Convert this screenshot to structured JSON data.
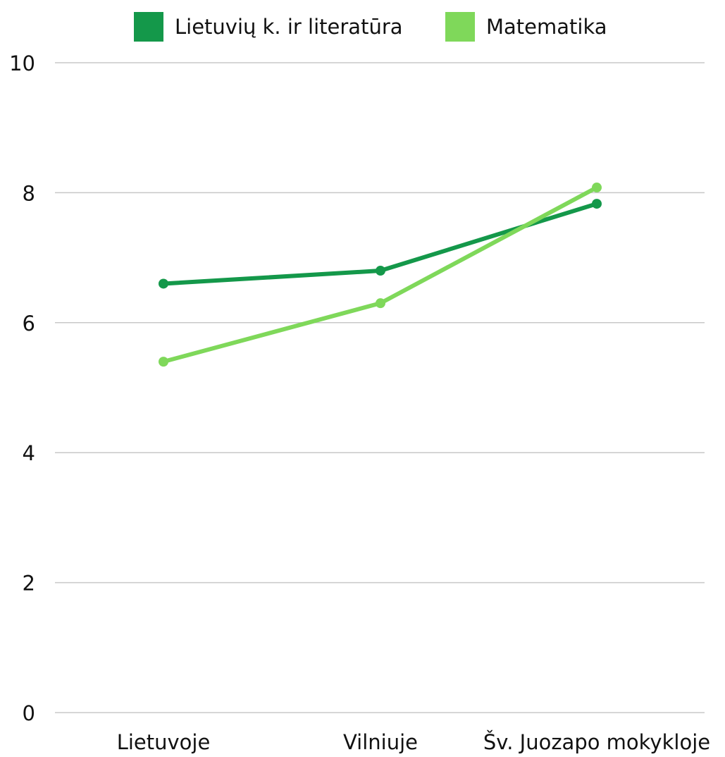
{
  "chart_data": {
    "type": "line",
    "categories": [
      "Lietuvoje",
      "Vilniuje",
      "Šv. Juozapo mokykloje"
    ],
    "series": [
      {
        "name": "Lietuvių k. ir literatūra",
        "color": "#14984a",
        "values": [
          6.6,
          6.8,
          7.83
        ]
      },
      {
        "name": "Matematika",
        "color": "#7fd85a",
        "values": [
          5.4,
          6.3,
          8.08
        ]
      }
    ],
    "yticks": [
      0,
      2,
      4,
      6,
      8,
      10
    ],
    "ylim": [
      0,
      10
    ],
    "grid": true,
    "legend_position": "top",
    "title": "",
    "xlabel": "",
    "ylabel": ""
  }
}
